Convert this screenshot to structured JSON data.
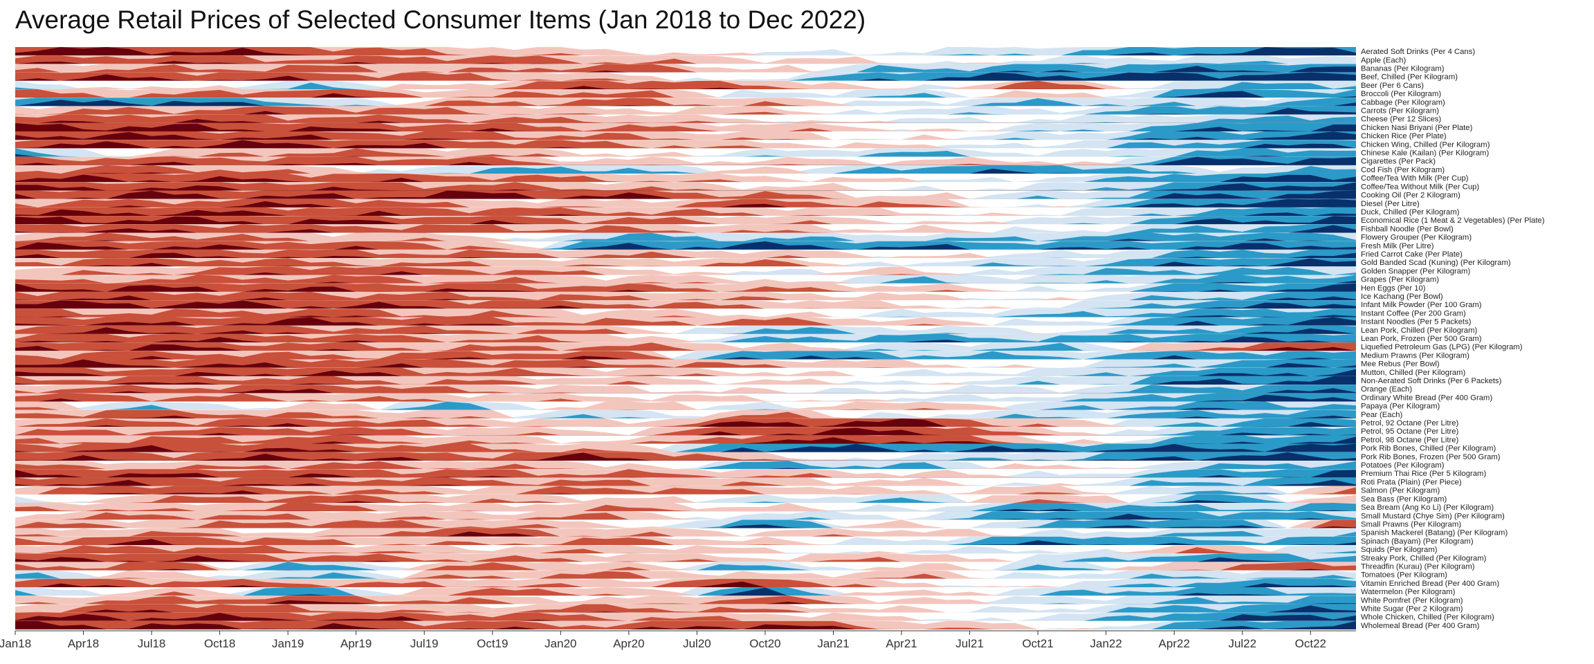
{
  "chart_data": {
    "type": "horizon",
    "title": "Average Retail Prices of Selected Consumer Items (Jan 2018 to Dec 2022)",
    "x_tick_labels": [
      "Jan18",
      "Apr18",
      "Jul18",
      "Oct18",
      "Jan19",
      "Apr19",
      "Jul19",
      "Oct19",
      "Jan20",
      "Apr20",
      "Jul20",
      "Oct20",
      "Jan21",
      "Apr21",
      "Jul21",
      "Oct21",
      "Jan22",
      "Apr22",
      "Jul22",
      "Oct22"
    ],
    "grid": false,
    "legend": "none",
    "colors": {
      "neg3": "#67000d",
      "neg2": "#c9503a",
      "neg1": "#f3c6bd",
      "pos1": "#d4e4f2",
      "pos2": "#2b9ac8",
      "pos3": "#08306b"
    },
    "items": [
      {
        "name": "Aerated Soft Drinks (Per 4 Cans)",
        "values": [
          -2.8,
          -2.6,
          -2.1,
          -1.2,
          -0.6,
          0.2,
          0.5,
          1.3,
          2.4,
          2.9
        ]
      },
      {
        "name": "Apple (Each)",
        "values": [
          -1.8,
          -2.0,
          -1.6,
          -1.9,
          -1.3,
          -0.7,
          -0.2,
          0.6,
          0.9,
          1.1
        ]
      },
      {
        "name": "Bananas (Per Kilogram)",
        "values": [
          -1.2,
          -1.4,
          -1.6,
          -1.1,
          -1.9,
          -0.5,
          1.5,
          1.9,
          2.2,
          2.5
        ]
      },
      {
        "name": "Beef, Chilled (Per Kilogram)",
        "values": [
          -2.4,
          -2.2,
          -2.0,
          -1.6,
          -0.8,
          0.4,
          2.3,
          2.7,
          2.8,
          2.8
        ]
      },
      {
        "name": "Beer (Per 6 Cans)",
        "values": [
          0.9,
          -0.5,
          1.2,
          -0.8,
          -2.2,
          -1.5,
          0.3,
          -1.7,
          1.4,
          1.6
        ]
      },
      {
        "name": "Broccoli (Per Kilogram)",
        "values": [
          -1.6,
          -1.3,
          -2.1,
          -1.0,
          -1.8,
          0.5,
          1.1,
          -0.9,
          2.4,
          1.8
        ]
      },
      {
        "name": "Cabbage (Per Kilogram)",
        "values": [
          2.2,
          2.6,
          1.4,
          -1.3,
          -1.7,
          -1.1,
          0.6,
          1.5,
          0.9,
          1.9
        ]
      },
      {
        "name": "Carrots (Per Kilogram)",
        "values": [
          -1.1,
          -1.6,
          -1.9,
          -1.4,
          -0.6,
          -0.9,
          0.8,
          0.7,
          2.1,
          2.3
        ]
      },
      {
        "name": "Cheese (Per 12 Slices)",
        "values": [
          -1.7,
          -2.1,
          -1.8,
          -1.5,
          -1.2,
          -0.4,
          0.3,
          0.5,
          1.2,
          1.9
        ]
      },
      {
        "name": "Chicken Nasi Briyani (Per Plate)",
        "values": [
          -2.7,
          -2.5,
          -2.2,
          -1.9,
          -1.5,
          -1.0,
          -0.3,
          0.8,
          2.0,
          2.6
        ]
      },
      {
        "name": "Chicken Rice (Per Plate)",
        "values": [
          -2.6,
          -2.4,
          -2.1,
          -1.8,
          -1.4,
          -0.9,
          -0.1,
          0.9,
          2.1,
          2.7
        ]
      },
      {
        "name": "Chicken Wing, Chilled (Per Kilogram)",
        "values": [
          -2.3,
          -2.4,
          -2.5,
          -2.0,
          -1.6,
          -0.8,
          -0.2,
          0.7,
          1.8,
          2.5
        ]
      },
      {
        "name": "Chinese Kale (Kailan) (Per Kilogram)",
        "values": [
          2.1,
          -0.8,
          -1.6,
          -1.2,
          -0.5,
          0.6,
          1.4,
          0.4,
          1.6,
          2.0
        ]
      },
      {
        "name": "Cigarettes (Per Pack)",
        "values": [
          -1.9,
          -1.9,
          -1.9,
          -1.9,
          -0.6,
          -0.6,
          -0.6,
          -0.6,
          2.7,
          2.7
        ]
      },
      {
        "name": "Cod Fish (Per Kilogram)",
        "values": [
          -1.4,
          -1.8,
          -0.9,
          1.3,
          1.7,
          -0.5,
          1.9,
          2.1,
          0.7,
          1.5
        ]
      },
      {
        "name": "Coffee/Tea With Milk (Per Cup)",
        "values": [
          -2.4,
          -2.3,
          -2.1,
          -1.8,
          -1.3,
          -0.7,
          -0.1,
          0.6,
          2.2,
          2.8
        ]
      },
      {
        "name": "Coffee/Tea Without Milk (Per Cup)",
        "values": [
          -2.3,
          -2.2,
          -2.0,
          -1.7,
          -1.2,
          -0.6,
          0.0,
          0.7,
          2.3,
          2.9
        ]
      },
      {
        "name": "Cooking Oil (Per 2 Kilogram)",
        "values": [
          -2.1,
          -2.5,
          -2.2,
          -2.6,
          -2.3,
          -1.5,
          -0.4,
          0.9,
          2.4,
          2.7
        ]
      },
      {
        "name": "Diesel (Per Litre)",
        "values": [
          -1.5,
          -1.8,
          -2.3,
          -1.1,
          -0.7,
          -2.0,
          -1.2,
          0.4,
          2.6,
          2.9
        ]
      },
      {
        "name": "Duck, Chilled (Per Kilogram)",
        "values": [
          -2.2,
          -2.4,
          -2.1,
          -1.9,
          -1.6,
          -1.2,
          -0.5,
          0.3,
          1.6,
          2.5
        ]
      },
      {
        "name": "Economical Rice (1 Meat & 2 Vegetables) (Per Plate)",
        "values": [
          -2.6,
          -2.5,
          -2.3,
          -2.0,
          -1.6,
          -1.1,
          -0.4,
          0.6,
          2.2,
          2.8
        ]
      },
      {
        "name": "Fishball Noodle (Per Bowl)",
        "values": [
          -2.2,
          -2.1,
          -1.9,
          -1.7,
          -1.4,
          -1.0,
          -0.4,
          0.3,
          1.5,
          2.4
        ]
      },
      {
        "name": "Flowery Grouper (Per Kilogram)",
        "values": [
          -1.3,
          -1.7,
          -1.1,
          -0.8,
          1.6,
          1.3,
          0.9,
          1.5,
          2.0,
          1.7
        ]
      },
      {
        "name": "Fresh Milk (Per Litre)",
        "values": [
          -2.4,
          -2.2,
          -2.0,
          -1.6,
          2.3,
          2.5,
          2.2,
          1.9,
          2.3,
          2.6
        ]
      },
      {
        "name": "Fried Carrot Cake (Per Plate)",
        "values": [
          -2.0,
          -2.2,
          -1.9,
          -1.6,
          -1.3,
          -0.9,
          -0.3,
          0.5,
          1.7,
          2.3
        ]
      },
      {
        "name": "Gold Banded Scad (Kuning) (Per Kilogram)",
        "values": [
          -1.6,
          -2.0,
          -1.5,
          -1.2,
          -0.8,
          -1.4,
          0.6,
          1.1,
          2.2,
          2.5
        ]
      },
      {
        "name": "Golden Snapper (Per Kilogram)",
        "values": [
          -0.8,
          -1.3,
          -2.1,
          -1.7,
          -1.0,
          0.5,
          -0.7,
          1.2,
          1.6,
          1.4
        ]
      },
      {
        "name": "Grapes (Per Kilogram)",
        "values": [
          -1.1,
          -1.5,
          -1.8,
          -1.3,
          -0.9,
          -0.6,
          1.3,
          0.8,
          1.7,
          2.0
        ]
      },
      {
        "name": "Hen Eggs (Per 10)",
        "values": [
          -2.5,
          -2.4,
          -2.2,
          -2.0,
          -1.7,
          -1.3,
          -0.8,
          0.2,
          1.9,
          2.6
        ]
      },
      {
        "name": "Ice Kachang (Per Bowl)",
        "values": [
          -2.1,
          -2.0,
          -1.8,
          -1.6,
          -1.3,
          -1.0,
          -0.5,
          0.2,
          1.4,
          2.2
        ]
      },
      {
        "name": "Infant Milk Powder (Per 100 Gram)",
        "values": [
          -2.7,
          -2.6,
          -2.4,
          -2.1,
          -1.7,
          -1.2,
          -0.5,
          0.4,
          2.0,
          2.7
        ]
      },
      {
        "name": "Instant Coffee (Per 200 Gram)",
        "values": [
          -1.8,
          -1.5,
          -1.9,
          -1.3,
          -0.8,
          -0.4,
          0.5,
          1.2,
          1.8,
          2.1
        ]
      },
      {
        "name": "Instant Noodles (Per 5 Packets)",
        "values": [
          -2.3,
          -2.1,
          -2.5,
          -1.9,
          -1.4,
          -1.6,
          -0.7,
          0.5,
          2.1,
          2.6
        ]
      },
      {
        "name": "Lean Pork, Chilled (Per Kilogram)",
        "values": [
          -2.0,
          -2.3,
          -1.8,
          -1.5,
          -1.2,
          1.6,
          0.8,
          0.4,
          1.7,
          2.4
        ]
      },
      {
        "name": "Lean Pork, Frozen (Per 500 Gram)",
        "values": [
          -1.7,
          -2.2,
          -1.9,
          -1.4,
          -1.1,
          1.3,
          1.9,
          1.5,
          2.2,
          2.3
        ]
      },
      {
        "name": "Liquefied Petroleum Gas (LPG) (Per Kilogram)",
        "values": [
          -2.1,
          -2.4,
          -1.8,
          -1.3,
          -1.6,
          -0.8,
          0.9,
          1.4,
          -1.5,
          -2.4
        ]
      },
      {
        "name": "Medium Prawns (Per Kilogram)",
        "values": [
          -1.5,
          -1.9,
          -1.4,
          -1.8,
          -2.0,
          2.4,
          1.6,
          1.3,
          2.0,
          1.7
        ]
      },
      {
        "name": "Mee Rebus (Per Bowl)",
        "values": [
          -2.5,
          -2.3,
          -2.1,
          -1.9,
          -1.6,
          -1.2,
          -0.6,
          0.2,
          1.6,
          2.4
        ]
      },
      {
        "name": "Mutton, Chilled (Per Kilogram)",
        "values": [
          -2.2,
          -1.9,
          -2.4,
          -1.6,
          -1.1,
          -0.6,
          0.3,
          0.8,
          1.9,
          2.6
        ]
      },
      {
        "name": "Non-Aerated Soft Drinks (Per 6 Packets)",
        "values": [
          -1.6,
          -2.0,
          -1.7,
          -1.3,
          -0.9,
          -0.4,
          0.2,
          0.9,
          2.3,
          2.7
        ]
      },
      {
        "name": "Orange (Each)",
        "values": [
          -1.4,
          -1.7,
          -2.2,
          -1.3,
          -0.6,
          -0.2,
          0.5,
          0.6,
          1.8,
          2.2
        ]
      },
      {
        "name": "Ordinary White Bread (Per 400 Gram)",
        "values": [
          -1.9,
          -1.6,
          -1.3,
          -1.0,
          -0.7,
          -0.4,
          0.3,
          0.8,
          2.1,
          2.6
        ]
      },
      {
        "name": "Papaya (Per Kilogram)",
        "values": [
          -1.2,
          1.4,
          -0.8,
          1.7,
          -1.1,
          0.6,
          -1.3,
          1.0,
          1.9,
          1.6
        ]
      },
      {
        "name": "Pear (Each)",
        "values": [
          -1.6,
          -1.9,
          -1.3,
          -0.9,
          1.5,
          -1.4,
          0.5,
          1.1,
          1.7,
          1.9
        ]
      },
      {
        "name": "Petrol, 92 Octane (Per Litre)",
        "values": [
          -1.4,
          -1.7,
          -2.0,
          -1.2,
          -0.6,
          -2.4,
          -2.6,
          -0.8,
          1.6,
          2.2
        ]
      },
      {
        "name": "Petrol, 95 Octane (Per Litre)",
        "values": [
          -1.3,
          -1.6,
          -1.9,
          -1.1,
          -0.5,
          -2.3,
          -2.5,
          -0.7,
          1.7,
          2.3
        ]
      },
      {
        "name": "Petrol, 98 Octane (Per Litre)",
        "values": [
          -1.2,
          -1.5,
          -1.8,
          -1.0,
          -0.4,
          -2.2,
          -2.4,
          -0.6,
          1.8,
          2.4
        ]
      },
      {
        "name": "Pork Rib Bones, Chilled (Per Kilogram)",
        "values": [
          -2.0,
          -2.3,
          -2.1,
          -1.6,
          -1.0,
          2.6,
          2.4,
          2.2,
          2.5,
          2.7
        ]
      },
      {
        "name": "Pork Rib Bones, Frozen (Per 500 Gram)",
        "values": [
          -2.2,
          -1.9,
          -2.4,
          -1.7,
          -2.5,
          -0.9,
          0.7,
          1.3,
          2.6,
          2.4
        ]
      },
      {
        "name": "Potatoes (Per Kilogram)",
        "values": [
          -1.3,
          -0.9,
          -1.6,
          -1.2,
          -0.8,
          1.7,
          1.4,
          -0.6,
          1.2,
          1.8
        ]
      },
      {
        "name": "Premium Thai Rice (Per 5 Kilogram)",
        "values": [
          -2.4,
          -2.2,
          -2.0,
          -1.8,
          -1.5,
          -1.1,
          -0.6,
          0.3,
          1.8,
          2.5
        ]
      },
      {
        "name": "Roti Prata (Plain) (Per Piece)",
        "values": [
          -2.3,
          -2.1,
          -1.9,
          -1.7,
          -1.4,
          -1.0,
          -0.5,
          0.2,
          1.5,
          2.3
        ]
      },
      {
        "name": "Salmon (Per Kilogram)",
        "values": [
          -1.1,
          -2.3,
          -1.5,
          -0.9,
          -1.8,
          -1.2,
          -0.4,
          -0.9,
          1.6,
          -1.3
        ]
      },
      {
        "name": "Sea Bass (Per Kilogram)",
        "values": [
          0.8,
          -1.4,
          -1.8,
          -1.1,
          -0.7,
          0.6,
          1.2,
          -1.5,
          2.0,
          -0.8
        ]
      },
      {
        "name": "Sea Bream (Ang Ko Li) (Per Kilogram)",
        "values": [
          -1.5,
          -0.9,
          -1.7,
          -0.6,
          -1.3,
          -0.5,
          0.4,
          2.1,
          1.3,
          1.8
        ]
      },
      {
        "name": "Small Mustard (Chye Sim) (Per Kilogram)",
        "values": [
          -0.7,
          -1.6,
          -1.2,
          -0.9,
          -1.4,
          0.9,
          0.5,
          2.3,
          2.0,
          1.5
        ]
      },
      {
        "name": "Small Prawns (Per Kilogram)",
        "values": [
          -1.4,
          -1.1,
          -1.8,
          -1.3,
          -0.6,
          2.2,
          -0.8,
          1.7,
          2.4,
          -1.9
        ]
      },
      {
        "name": "Spanish Mackerel (Batang) (Per Kilogram)",
        "values": [
          -0.8,
          -1.3,
          -0.5,
          -2.3,
          -1.1,
          -0.6,
          -0.9,
          0.4,
          1.3,
          1.1
        ]
      },
      {
        "name": "Spinach (Bayam) (Per Kilogram)",
        "values": [
          -1.6,
          -2.2,
          -1.4,
          -1.0,
          -1.6,
          -0.5,
          0.7,
          2.3,
          1.6,
          1.9
        ]
      },
      {
        "name": "Squids (Per Kilogram)",
        "values": [
          -1.2,
          -1.8,
          -1.3,
          -0.7,
          -1.1,
          -0.4,
          0.3,
          0.5,
          -1.2,
          1.4
        ]
      },
      {
        "name": "Streaky Pork, Chilled (Per Kilogram)",
        "values": [
          -2.1,
          -2.3,
          -1.7,
          -1.4,
          -1.1,
          -0.6,
          -1.3,
          0.9,
          2.1,
          1.7
        ]
      },
      {
        "name": "Threadfin (Kurau) (Per Kilogram)",
        "values": [
          -1.3,
          -1.9,
          2.1,
          -1.5,
          -1.0,
          1.6,
          -0.8,
          1.3,
          -1.4,
          -1.9
        ]
      },
      {
        "name": "Tomatoes (Per Kilogram)",
        "values": [
          1.4,
          -0.9,
          1.6,
          -1.2,
          -1.5,
          -0.4,
          -1.1,
          0.7,
          1.2,
          0.9
        ]
      },
      {
        "name": "Vitamin Enriched Bread (Per 400 Gram)",
        "values": [
          -2.1,
          -1.8,
          -1.5,
          -1.2,
          -0.9,
          -2.3,
          -0.4,
          0.3,
          1.7,
          2.3
        ]
      },
      {
        "name": "Watermelon (Per Kilogram)",
        "values": [
          1.6,
          -1.1,
          2.1,
          -1.6,
          -1.3,
          2.4,
          -0.9,
          1.2,
          2.0,
          1.4
        ]
      },
      {
        "name": "White Pomfret (Per Kilogram)",
        "values": [
          -1.0,
          -1.5,
          -2.1,
          -1.3,
          -0.5,
          -1.8,
          -0.6,
          0.8,
          1.3,
          1.9
        ]
      },
      {
        "name": "White Sugar (Per 2 Kilogram)",
        "values": [
          -1.1,
          -2.2,
          -1.4,
          -0.8,
          -1.7,
          -1.2,
          -0.3,
          0.6,
          1.8,
          2.4
        ]
      },
      {
        "name": "Whole Chicken, Chilled (Per Kilogram)",
        "values": [
          -2.3,
          -2.5,
          -2.2,
          -1.9,
          -1.5,
          -1.0,
          -0.3,
          0.7,
          2.2,
          2.8
        ]
      },
      {
        "name": "Wholemeal Bread (Per 400 Gram)",
        "values": [
          -2.6,
          -2.4,
          -2.2,
          -1.9,
          -1.6,
          -2.6,
          -1.1,
          -0.3,
          1.9,
          2.7
        ]
      }
    ]
  }
}
